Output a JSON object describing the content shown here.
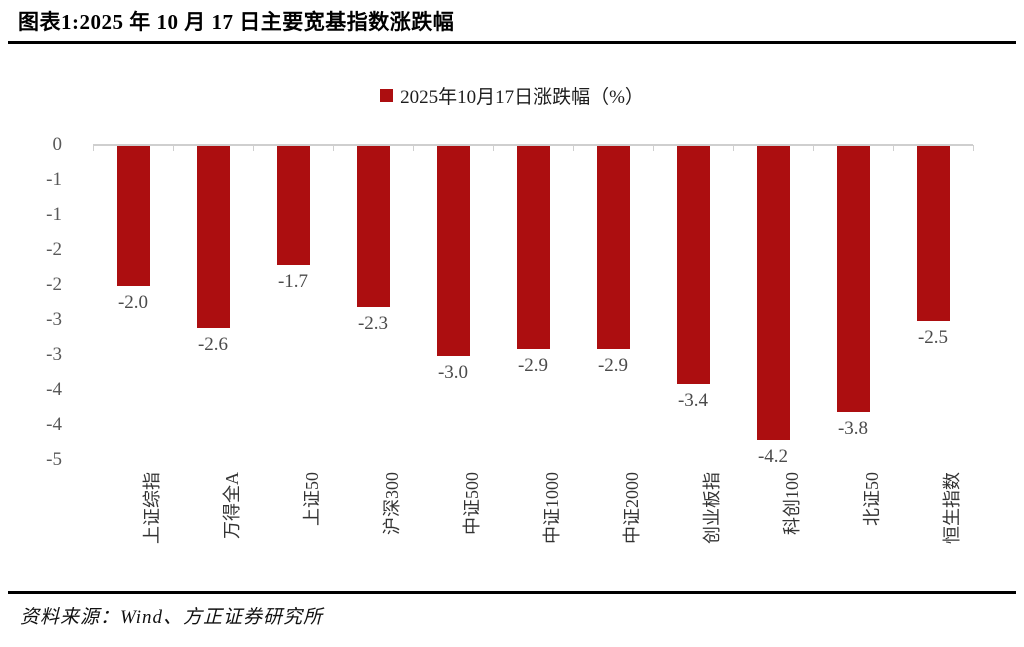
{
  "header": {
    "title": "图表1:2025 年 10 月 17 日主要宽基指数涨跌幅"
  },
  "footer": {
    "source": "资料来源：Wind、方正证券研究所"
  },
  "chart_data": {
    "type": "bar",
    "title": "图表1:2025 年 10 月 17 日主要宽基指数涨跌幅",
    "legend": "2025年10月17日涨跌幅（%）",
    "legend_position": "top-center",
    "categories": [
      "上证综指",
      "万得全A",
      "上证50",
      "沪深300",
      "中证500",
      "中证1000",
      "中证2000",
      "创业板指",
      "科创100",
      "北证50",
      "恒生指数"
    ],
    "values": [
      -2.0,
      -2.6,
      -1.7,
      -2.3,
      -3.0,
      -2.9,
      -2.9,
      -3.4,
      -4.2,
      -3.8,
      -2.5
    ],
    "value_labels": [
      "-2.0",
      "-2.6",
      "-1.7",
      "-2.3",
      "-3.0",
      "-2.9",
      "-2.9",
      "-3.4",
      "-4.2",
      "-3.8",
      "-2.5"
    ],
    "xlabel": "",
    "ylabel": "",
    "ylim": [
      -4.5,
      0
    ],
    "ytick_step": 0.5,
    "ytick_labels": [
      "0",
      "-1",
      "-1",
      "-2",
      "-2",
      "-3",
      "-3",
      "-4",
      "-4",
      "-5"
    ],
    "grid": false,
    "bar_color": "#AC0E10",
    "axis_color": "#cfcfcf",
    "label_color": "#4a4a4a"
  }
}
